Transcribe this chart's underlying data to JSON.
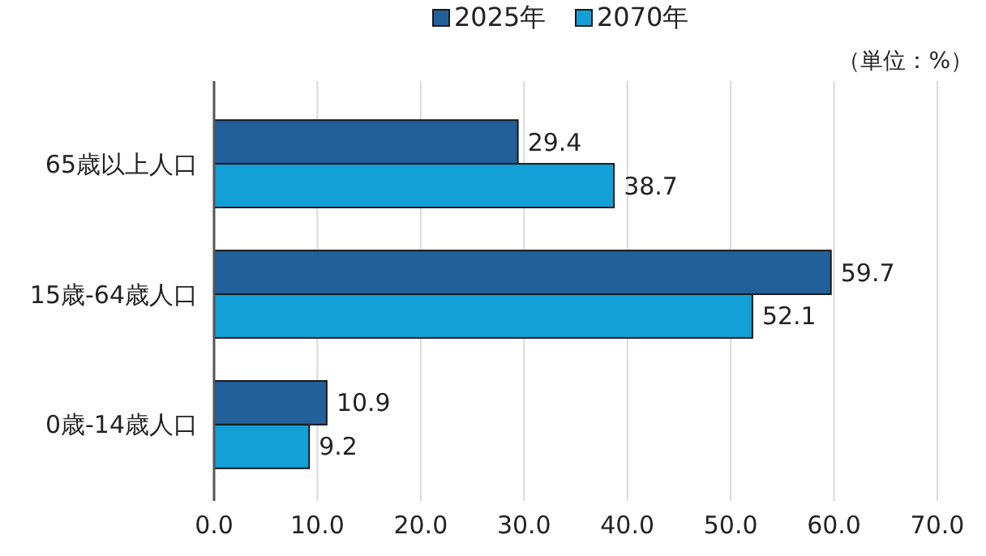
{
  "chart_data": {
    "type": "bar",
    "orientation": "horizontal",
    "categories": [
      "65歳以上人口",
      "15歳-64歳人口",
      "0歳-14歳人口"
    ],
    "series": [
      {
        "name": "2025年",
        "color": "#22609a",
        "values": [
          29.4,
          59.7,
          10.9
        ]
      },
      {
        "name": "2070年",
        "color": "#12a0d7",
        "values": [
          38.7,
          52.1,
          9.2
        ]
      }
    ],
    "xlim": [
      0,
      70
    ],
    "xticks": [
      {
        "value": 0,
        "label": "0.0"
      },
      {
        "value": 10,
        "label": "10.0"
      },
      {
        "value": 20,
        "label": "20.0"
      },
      {
        "value": 30,
        "label": "30.0"
      },
      {
        "value": 40,
        "label": "40.0"
      },
      {
        "value": 50,
        "label": "50.0"
      },
      {
        "value": 60,
        "label": "60.0"
      },
      {
        "value": 70,
        "label": "70.0"
      }
    ],
    "grid": "x",
    "legend": "top",
    "data_labels": true,
    "annotations": [
      "（単位：%）"
    ]
  }
}
